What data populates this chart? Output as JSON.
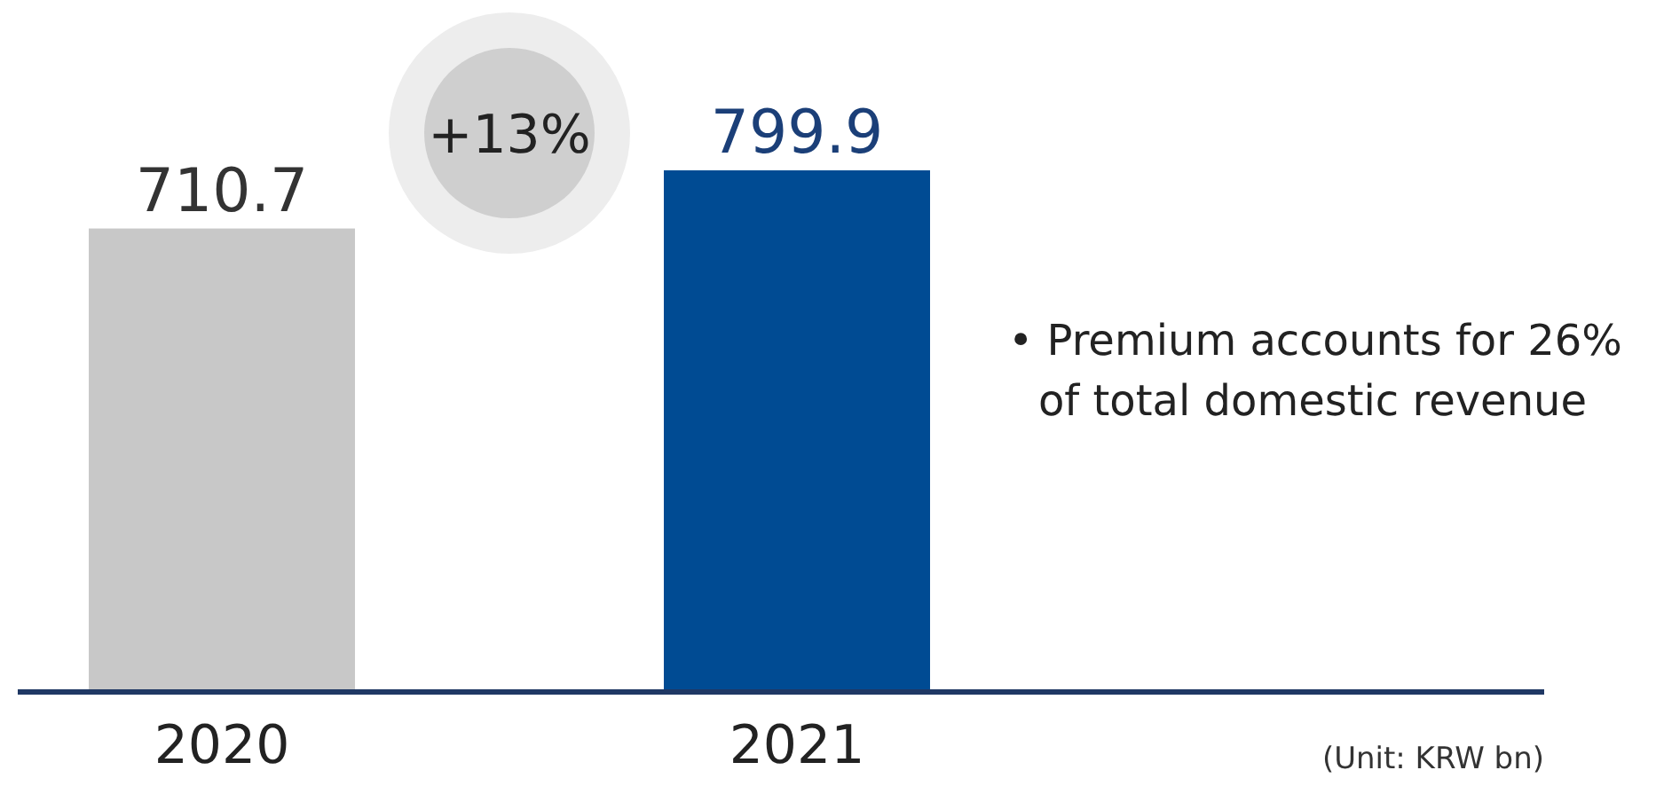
{
  "chart_data": {
    "type": "bar",
    "categories": [
      "2020",
      "2021"
    ],
    "values": [
      710.7,
      799.9
    ],
    "colors": [
      "#c8c8c8",
      "#004b93"
    ],
    "data_labels": true,
    "annotations": [
      "+13%",
      "• Premium accounts for 26%\nof total domestic revenue",
      "(Unit: KRW bn)"
    ]
  }
}
